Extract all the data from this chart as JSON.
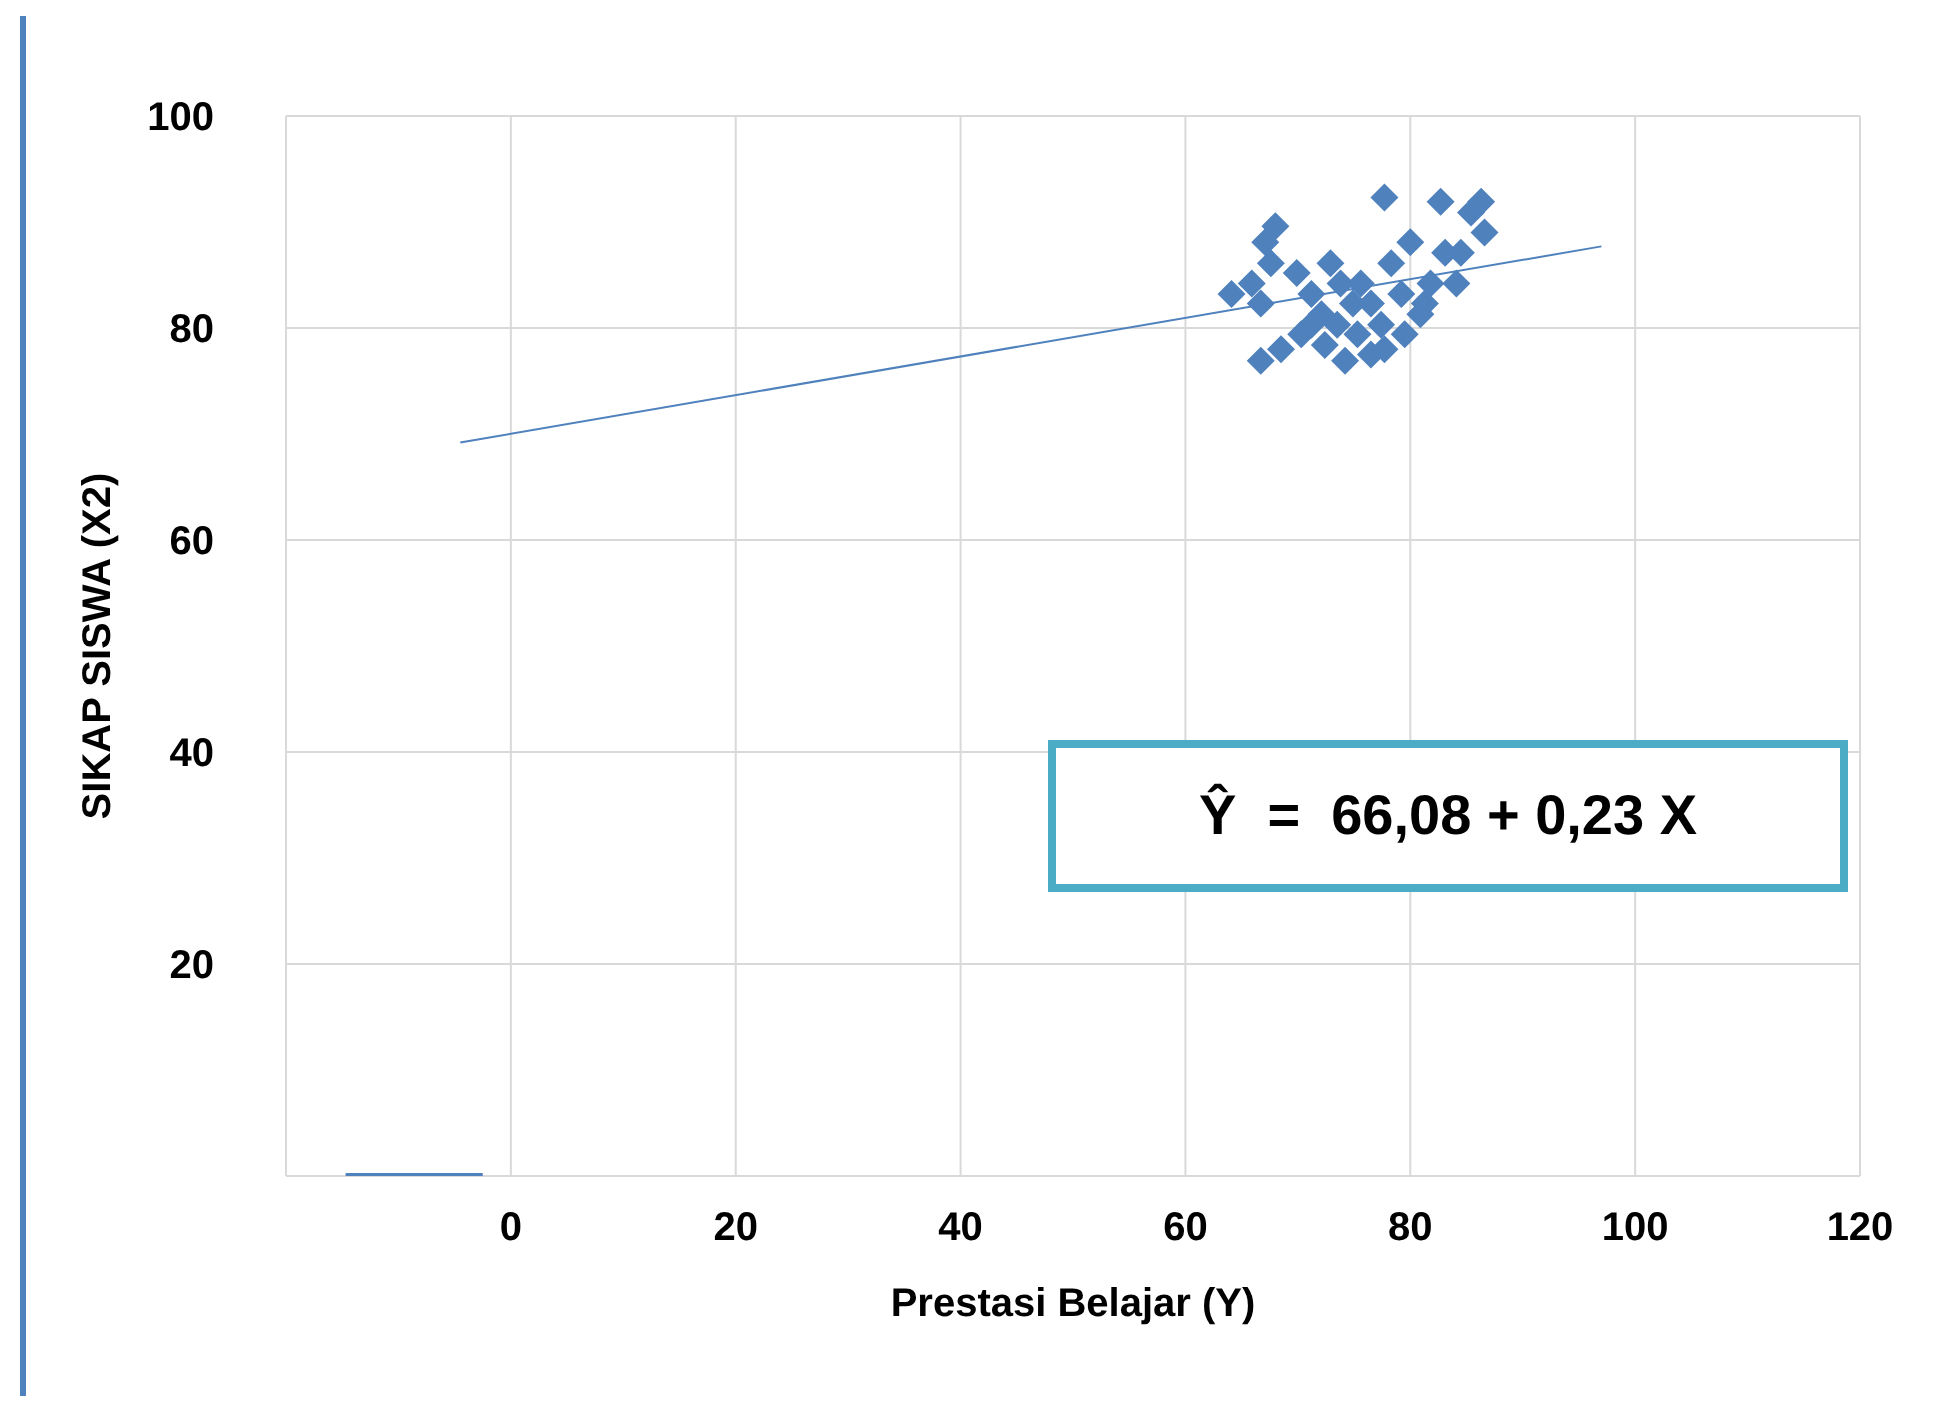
{
  "chart_data": {
    "type": "scatter",
    "xlabel": "Prestasi Belajar (Y)",
    "ylabel": "SIKAP SISWA (X2)",
    "xlim": [
      -20,
      120
    ],
    "xticks": [
      0,
      20,
      40,
      60,
      80,
      100,
      120
    ],
    "ylim": [
      0,
      100
    ],
    "yticks": [
      {
        "value": 0,
        "label": null
      },
      20,
      40,
      60,
      80,
      100
    ],
    "grid": true,
    "legend": false,
    "marker": "diamond",
    "annotations": [
      "Ŷ  =  66,08 + 0,23 X"
    ],
    "series": [
      {
        "color": "#4f81bd",
        "x": [
          64.1,
          65.9,
          66.7,
          67.6,
          68.0,
          67.1,
          66.7,
          68.5,
          70.3,
          69.9,
          71.2,
          72.1,
          72.9,
          73.8,
          73.5,
          74.2,
          75.3,
          76.5,
          76.5,
          77.4,
          77.7,
          78.3,
          79.2,
          77.7,
          80.0,
          80.9,
          81.8,
          82.7,
          83.1,
          84.1,
          85.4,
          86.3,
          86.6,
          84.5,
          81.3,
          72.4,
          74.9,
          71.2,
          75.6,
          79.5
        ],
        "values": [
          83.2,
          84.2,
          82.3,
          86.1,
          89.6,
          88.1,
          76.9,
          78.0,
          79.4,
          85.2,
          83.2,
          81.3,
          86.1,
          84.2,
          80.3,
          76.9,
          79.4,
          82.3,
          77.5,
          80.3,
          92.3,
          86.1,
          83.2,
          78.0,
          88.1,
          81.3,
          84.2,
          91.9,
          87.1,
          84.2,
          90.9,
          91.9,
          89.0,
          87.1,
          82.3,
          78.4,
          82.3,
          80.3,
          84.2,
          79.4
        ]
      },
      {
        "type": "line",
        "color": "#4f81bd",
        "marker": "none",
        "x": [
          -4.5,
          97
        ],
        "values": [
          69.2,
          87.7
        ]
      },
      {
        "type": "line",
        "color": "#4f81bd",
        "marker": "none",
        "x": [
          -14.7,
          -2.5
        ],
        "values": [
          0,
          0
        ]
      }
    ]
  }
}
